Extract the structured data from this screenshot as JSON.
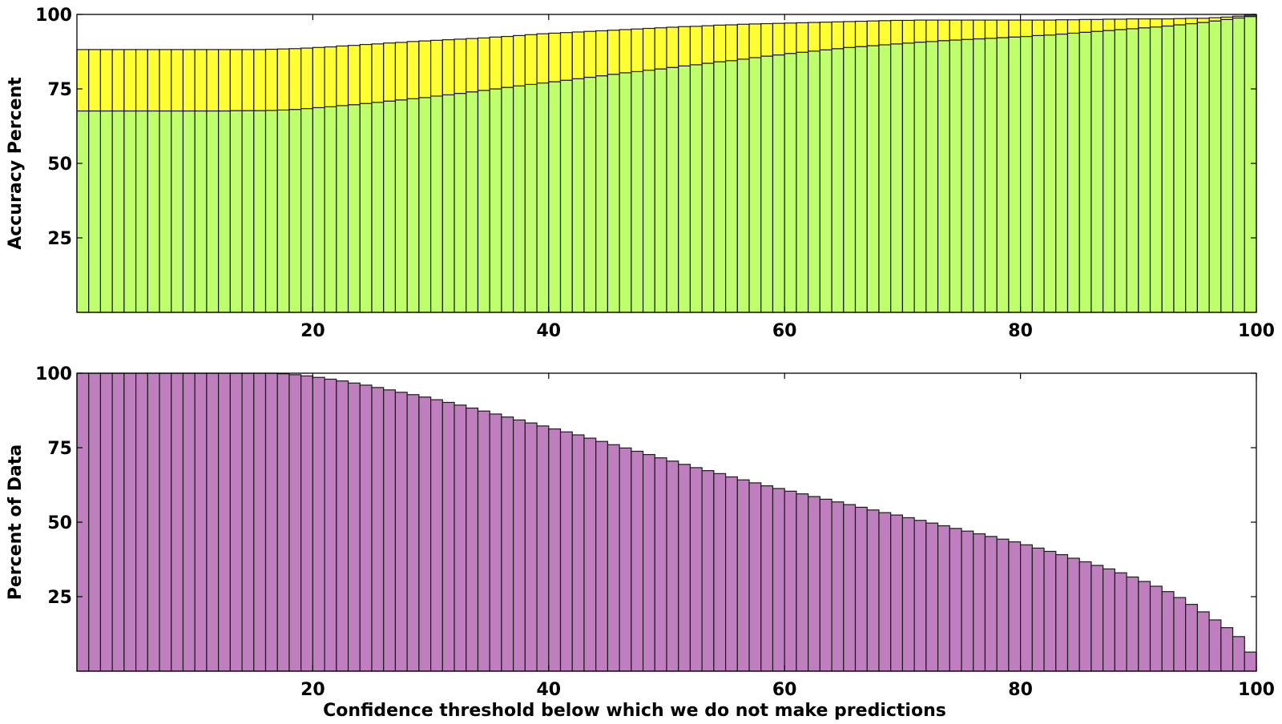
{
  "chart_data": [
    {
      "type": "bar",
      "stacked": true,
      "title": "",
      "xlabel": "",
      "ylabel": "Accuracy Percent",
      "xlim": [
        0,
        100
      ],
      "ylim": [
        0,
        100
      ],
      "xticks": [
        20,
        40,
        60,
        80,
        100
      ],
      "yticks": [
        25,
        50,
        75,
        100
      ],
      "grid": false,
      "legend": "none",
      "x": [
        1,
        2,
        3,
        4,
        5,
        6,
        7,
        8,
        9,
        10,
        11,
        12,
        13,
        14,
        15,
        16,
        17,
        18,
        19,
        20,
        21,
        22,
        23,
        24,
        25,
        26,
        27,
        28,
        29,
        30,
        31,
        32,
        33,
        34,
        35,
        36,
        37,
        38,
        39,
        40,
        41,
        42,
        43,
        44,
        45,
        46,
        47,
        48,
        49,
        50,
        51,
        52,
        53,
        54,
        55,
        56,
        57,
        58,
        59,
        60,
        61,
        62,
        63,
        64,
        65,
        66,
        67,
        68,
        69,
        70,
        71,
        72,
        73,
        74,
        75,
        76,
        77,
        78,
        79,
        80,
        81,
        82,
        83,
        84,
        85,
        86,
        87,
        88,
        89,
        90,
        91,
        92,
        93,
        94,
        95,
        96,
        97,
        98,
        99,
        100
      ],
      "series": [
        {
          "color": "#bfff6e",
          "values": [
            67.6,
            67.6,
            67.6,
            67.6,
            67.6,
            67.6,
            67.6,
            67.6,
            67.6,
            67.6,
            67.6,
            67.6,
            67.6,
            67.7,
            67.7,
            67.7,
            67.8,
            67.9,
            68.1,
            68.4,
            68.7,
            69.0,
            69.4,
            69.7,
            70.1,
            70.5,
            70.9,
            71.3,
            71.7,
            72.1,
            72.6,
            73.0,
            73.5,
            74.0,
            74.5,
            75.0,
            75.5,
            76.0,
            76.5,
            77.0,
            77.4,
            77.9,
            78.4,
            78.9,
            79.4,
            79.9,
            80.4,
            80.8,
            81.3,
            81.7,
            82.2,
            82.7,
            83.1,
            83.6,
            84.1,
            84.5,
            85.0,
            85.5,
            86.0,
            86.4,
            86.9,
            87.3,
            87.7,
            88.1,
            88.5,
            88.9,
            89.2,
            89.5,
            89.8,
            90.1,
            90.4,
            90.7,
            90.9,
            91.2,
            91.4,
            91.6,
            91.8,
            92.0,
            92.2,
            92.4,
            92.6,
            92.9,
            93.1,
            93.4,
            93.7,
            94.0,
            94.3,
            94.6,
            94.9,
            95.2,
            95.5,
            95.8,
            96.1,
            96.5,
            96.9,
            97.3,
            97.8,
            98.3,
            98.8,
            99.3
          ]
        },
        {
          "color": "#ffff33",
          "values": [
            20.6,
            20.6,
            20.6,
            20.6,
            20.6,
            20.6,
            20.6,
            20.6,
            20.6,
            20.6,
            20.6,
            20.6,
            20.6,
            20.5,
            20.5,
            20.5,
            20.5,
            20.5,
            20.4,
            20.3,
            20.2,
            20.1,
            20.0,
            19.9,
            19.8,
            19.6,
            19.5,
            19.3,
            19.2,
            19.0,
            18.7,
            18.5,
            18.2,
            17.9,
            17.6,
            17.4,
            17.1,
            16.9,
            16.7,
            16.5,
            16.3,
            16.0,
            15.7,
            15.4,
            15.1,
            14.8,
            14.5,
            14.3,
            14.0,
            13.8,
            13.5,
            13.2,
            12.9,
            12.6,
            12.3,
            12.0,
            11.7,
            11.3,
            10.9,
            10.6,
            10.2,
            9.9,
            9.6,
            9.3,
            9.0,
            8.7,
            8.5,
            8.3,
            8.1,
            7.9,
            7.6,
            7.4,
            7.2,
            6.9,
            6.7,
            6.5,
            6.3,
            6.1,
            5.9,
            5.7,
            5.5,
            5.2,
            5.0,
            4.8,
            4.5,
            4.3,
            4.0,
            3.8,
            3.5,
            3.3,
            3.0,
            2.7,
            2.4,
            2.1,
            1.8,
            1.4,
            1.1,
            0.8,
            0.6,
            0.4
          ]
        }
      ]
    },
    {
      "type": "bar",
      "title": "",
      "xlabel": "Confidence threshold below which we do not make predictions",
      "ylabel": "Percent of Data",
      "xlim": [
        0,
        100
      ],
      "ylim": [
        0,
        100
      ],
      "xticks": [
        20,
        40,
        60,
        80,
        100
      ],
      "yticks": [
        25,
        50,
        75,
        100
      ],
      "grid": false,
      "legend": "none",
      "x": [
        1,
        2,
        3,
        4,
        5,
        6,
        7,
        8,
        9,
        10,
        11,
        12,
        13,
        14,
        15,
        16,
        17,
        18,
        19,
        20,
        21,
        22,
        23,
        24,
        25,
        26,
        27,
        28,
        29,
        30,
        31,
        32,
        33,
        34,
        35,
        36,
        37,
        38,
        39,
        40,
        41,
        42,
        43,
        44,
        45,
        46,
        47,
        48,
        49,
        50,
        51,
        52,
        53,
        54,
        55,
        56,
        57,
        58,
        59,
        60,
        61,
        62,
        63,
        64,
        65,
        66,
        67,
        68,
        69,
        70,
        71,
        72,
        73,
        74,
        75,
        76,
        77,
        78,
        79,
        80,
        81,
        82,
        83,
        84,
        85,
        86,
        87,
        88,
        89,
        90,
        91,
        92,
        93,
        94,
        95,
        96,
        97,
        98,
        99,
        100
      ],
      "series": [
        {
          "color": "#bf7fbf",
          "values": [
            100,
            100,
            100,
            100,
            100,
            100,
            100,
            100,
            100,
            100,
            100,
            100,
            100,
            100,
            100,
            100,
            100,
            99.8,
            99.5,
            99.1,
            98.6,
            98.0,
            97.4,
            96.7,
            96.0,
            95.2,
            94.4,
            93.6,
            92.8,
            92.0,
            91.1,
            90.2,
            89.3,
            88.3,
            87.3,
            86.3,
            85.3,
            84.3,
            83.3,
            82.3,
            81.3,
            80.3,
            79.3,
            78.2,
            77.1,
            76.0,
            74.9,
            73.8,
            72.7,
            71.6,
            70.5,
            69.4,
            68.3,
            67.3,
            66.3,
            65.2,
            64.2,
            63.2,
            62.2,
            61.3,
            60.4,
            59.5,
            58.6,
            57.7,
            56.8,
            55.9,
            55.0,
            54.1,
            53.2,
            52.4,
            51.5,
            50.6,
            49.7,
            48.8,
            47.9,
            47.0,
            46.1,
            45.2,
            44.3,
            43.4,
            42.4,
            41.3,
            40.2,
            39.1,
            37.9,
            36.7,
            35.5,
            34.3,
            33.0,
            31.6,
            30.1,
            28.5,
            26.7,
            24.7,
            22.4,
            19.9,
            17.2,
            14.6,
            11.6,
            6.4
          ]
        }
      ]
    }
  ]
}
